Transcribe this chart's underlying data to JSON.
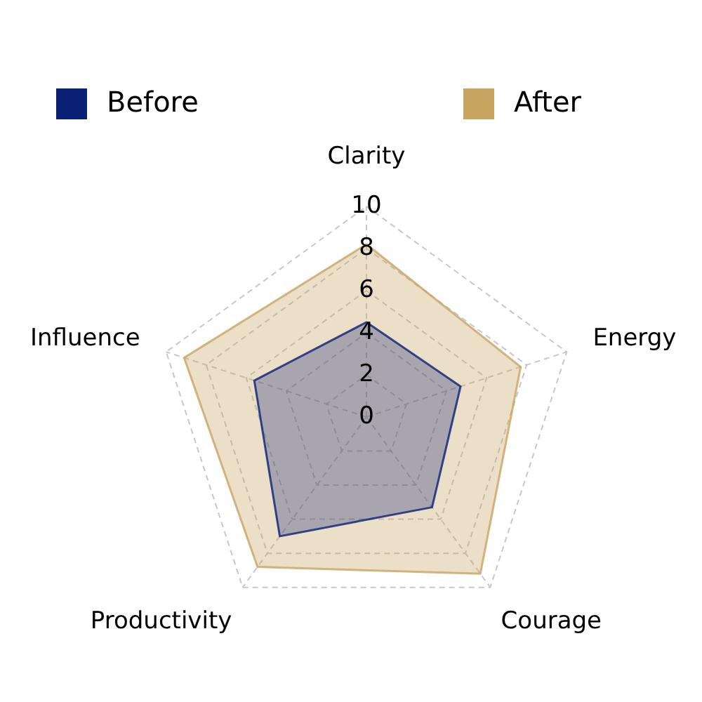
{
  "chart_data": {
    "type": "radar",
    "categories": [
      "Clarity",
      "Energy",
      "Courage",
      "Productivity",
      "Influence"
    ],
    "series": [
      {
        "name": "Before",
        "color": "#0b2175",
        "values": [
          4.5,
          4.7,
          5.3,
          7,
          5.6
        ]
      },
      {
        "name": "After",
        "color": "#c8a461",
        "values": [
          8.2,
          7.7,
          9.2,
          8.8,
          9.1
        ]
      }
    ],
    "ylim": [
      0,
      10
    ],
    "yticks": [
      0,
      2,
      4,
      6,
      8,
      10
    ],
    "grid": true,
    "legend": "top"
  }
}
